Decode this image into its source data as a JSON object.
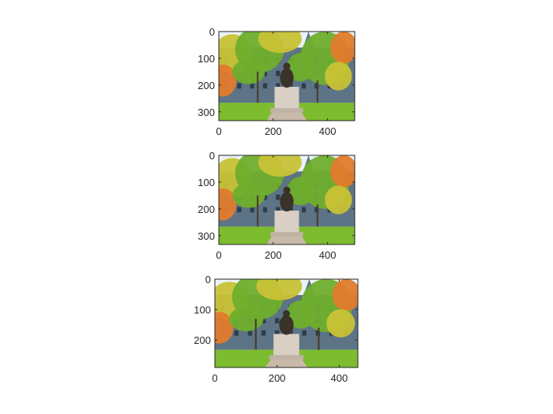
{
  "chart_data": [
    {
      "type": "image",
      "image_content": "campus-statue-photo",
      "x_ticks": [
        0,
        200,
        400
      ],
      "y_ticks": [
        0,
        100,
        200,
        300
      ],
      "xlim": [
        0,
        500
      ],
      "ylim": [
        0,
        333
      ],
      "y_reversed": true
    },
    {
      "type": "image",
      "image_content": "campus-statue-photo",
      "x_ticks": [
        0,
        200,
        400
      ],
      "y_ticks": [
        0,
        100,
        200,
        300
      ],
      "xlim": [
        0,
        500
      ],
      "ylim": [
        0,
        333
      ],
      "y_reversed": true
    },
    {
      "type": "image",
      "image_content": "campus-statue-photo",
      "x_ticks": [
        0,
        200,
        400
      ],
      "y_ticks": [
        0,
        100,
        200
      ],
      "xlim": [
        0,
        460
      ],
      "ylim": [
        0,
        290
      ],
      "y_reversed": true
    }
  ],
  "colors": {
    "sky": "#eaf3f9",
    "building": "#5d7386",
    "foliage_green": "#6fae2c",
    "foliage_yellow": "#c8c236",
    "foliage_orange": "#e07b2c",
    "grass": "#7cbc2e",
    "statue": "#3a3328",
    "pedestal": "#d9cfc4",
    "axis": "#262626"
  }
}
